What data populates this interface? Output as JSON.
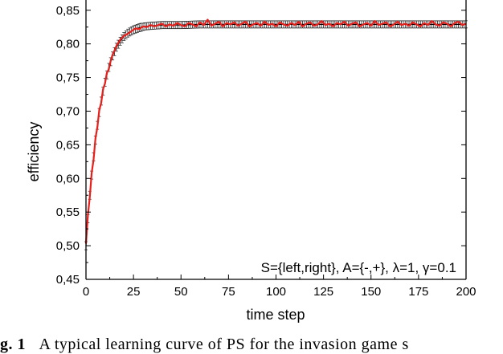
{
  "caption": {
    "label": "g. 1",
    "text": "A typical learning curve of PS for the invasion game s"
  },
  "chart_data": {
    "type": "line",
    "xlabel": "time step",
    "ylabel": "efficiency",
    "xlim": [
      0,
      200
    ],
    "ylim": [
      0.45,
      0.87
    ],
    "x_ticks": [
      0,
      25,
      50,
      75,
      100,
      125,
      150,
      175,
      200
    ],
    "y_ticks": [
      0.45,
      0.5,
      0.55,
      0.6,
      0.65,
      0.7,
      0.75,
      0.8,
      0.85
    ],
    "y_tick_labels": [
      "0,45",
      "0,50",
      "0,55",
      "0,60",
      "0,65",
      "0,70",
      "0,75",
      "0,80",
      "0,85"
    ],
    "annotation": "S={left,right}, A={-,+}, λ=1, γ=0.1",
    "colors": {
      "simulation": "#e8201c",
      "analytic": "#000000"
    },
    "series": [
      {
        "style": "black line with error bars",
        "x": [
          0,
          1,
          2,
          3,
          4,
          5,
          6,
          7,
          8,
          9,
          10,
          12,
          14,
          16,
          18,
          20,
          22,
          25,
          28,
          31,
          35,
          40,
          45,
          50,
          60,
          70,
          80,
          100,
          125,
          150,
          175,
          200
        ],
        "y": [
          0.5,
          0.54,
          0.575,
          0.605,
          0.632,
          0.657,
          0.679,
          0.698,
          0.715,
          0.73,
          0.743,
          0.765,
          0.782,
          0.795,
          0.804,
          0.811,
          0.816,
          0.821,
          0.824,
          0.826,
          0.827,
          0.828,
          0.828,
          0.828,
          0.829,
          0.829,
          0.829,
          0.829,
          0.829,
          0.829,
          0.829,
          0.829
        ]
      },
      {
        "style": "red line",
        "x": [
          0,
          1,
          2,
          3,
          4,
          5,
          6,
          7,
          8,
          9,
          10,
          11,
          12,
          13,
          14,
          15,
          16,
          18,
          20,
          22,
          24,
          26,
          28,
          30,
          32,
          34,
          36,
          38,
          40,
          42,
          44,
          46,
          48,
          50,
          52,
          54,
          56,
          58,
          60,
          62,
          64,
          66,
          68,
          70,
          72,
          74,
          76,
          78,
          80,
          82,
          84,
          86,
          88,
          90,
          92,
          94,
          96,
          98,
          100,
          102,
          104,
          106,
          108,
          110,
          112,
          114,
          116,
          118,
          120,
          122,
          124,
          126,
          128,
          130,
          132,
          134,
          136,
          138,
          140,
          142,
          144,
          146,
          148,
          150,
          152,
          154,
          156,
          158,
          160,
          162,
          164,
          166,
          168,
          170,
          172,
          174,
          176,
          178,
          180,
          182,
          184,
          186,
          188,
          190,
          192,
          194,
          196,
          198,
          200
        ],
        "y": [
          0.503,
          0.545,
          0.572,
          0.608,
          0.628,
          0.66,
          0.676,
          0.702,
          0.712,
          0.733,
          0.741,
          0.757,
          0.762,
          0.775,
          0.784,
          0.79,
          0.797,
          0.806,
          0.812,
          0.815,
          0.819,
          0.823,
          0.822,
          0.826,
          0.825,
          0.828,
          0.826,
          0.828,
          0.83,
          0.826,
          0.829,
          0.827,
          0.831,
          0.828,
          0.826,
          0.831,
          0.829,
          0.826,
          0.832,
          0.828,
          0.836,
          0.827,
          0.83,
          0.833,
          0.826,
          0.831,
          0.829,
          0.832,
          0.827,
          0.83,
          0.833,
          0.826,
          0.829,
          0.831,
          0.827,
          0.833,
          0.828,
          0.83,
          0.826,
          0.832,
          0.829,
          0.827,
          0.831,
          0.828,
          0.833,
          0.826,
          0.83,
          0.832,
          0.827,
          0.829,
          0.834,
          0.828,
          0.83,
          0.826,
          0.831,
          0.829,
          0.833,
          0.827,
          0.83,
          0.832,
          0.826,
          0.829,
          0.831,
          0.827,
          0.834,
          0.828,
          0.83,
          0.832,
          0.826,
          0.829,
          0.833,
          0.828,
          0.83,
          0.827,
          0.832,
          0.829,
          0.826,
          0.831,
          0.828,
          0.834,
          0.829,
          0.827,
          0.832,
          0.83,
          0.826,
          0.831,
          0.833,
          0.828,
          0.83
        ]
      }
    ]
  }
}
